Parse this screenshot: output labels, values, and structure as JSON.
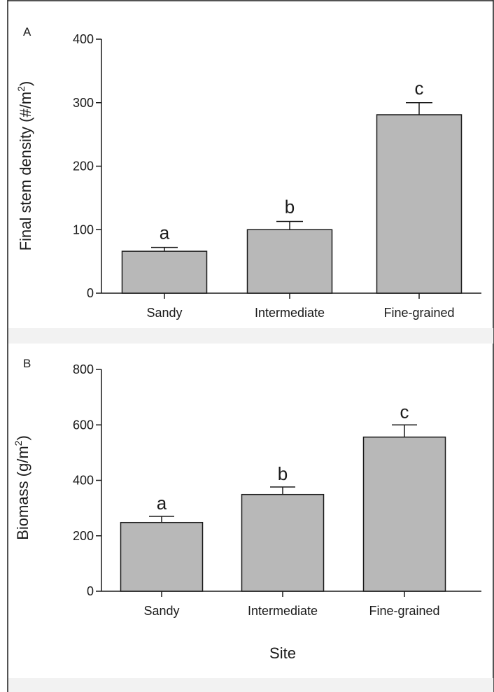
{
  "chart_data": [
    {
      "panel": "A",
      "type": "bar",
      "categories": [
        "Sandy",
        "Intermediate",
        "Fine-grained"
      ],
      "values": [
        66,
        100,
        281
      ],
      "error": [
        6,
        13,
        19
      ],
      "significance_letters": [
        "a",
        "b",
        "c"
      ],
      "ylabel": "Final stem density (#/m",
      "ylabel_sup": "2",
      "ylabel_end": ")",
      "xlabel": "",
      "ylim": [
        0,
        400
      ],
      "yticks": [
        0,
        100,
        200,
        300,
        400
      ],
      "bar_color": "#b8b8b8"
    },
    {
      "panel": "B",
      "type": "bar",
      "categories": [
        "Sandy",
        "Intermediate",
        "Fine-grained"
      ],
      "values": [
        248,
        349,
        556
      ],
      "error": [
        22,
        27,
        44
      ],
      "significance_letters": [
        "a",
        "b",
        "c"
      ],
      "ylabel": "Biomass (g/m",
      "ylabel_sup": "2",
      "ylabel_end": ")",
      "xlabel": "Site",
      "ylim": [
        0,
        800
      ],
      "yticks": [
        0,
        200,
        400,
        600,
        800
      ],
      "bar_color": "#b8b8b8"
    }
  ],
  "colors": {
    "border": "#1a1a1a",
    "separator": "#f2f2f2",
    "bar_outline": "#1a1a1a"
  }
}
